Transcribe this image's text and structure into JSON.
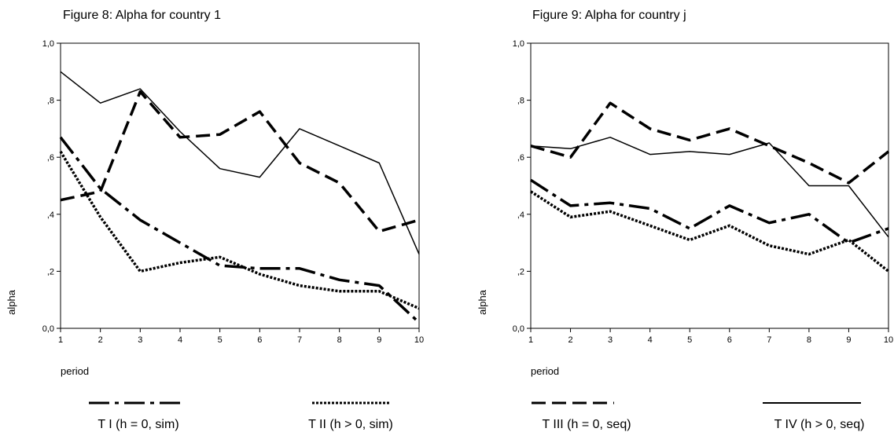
{
  "legend": {
    "items": [
      {
        "label": "T I (h = 0, sim)",
        "style": "dashdot"
      },
      {
        "label": "T II (h > 0, sim)",
        "style": "dotted"
      },
      {
        "label": "T III (h = 0, seq)",
        "style": "dashed"
      },
      {
        "label": "T IV (h > 0, seq)",
        "style": "solid"
      }
    ]
  },
  "chart_data": [
    {
      "type": "line",
      "title": "Figure 8: Alpha for country 1",
      "xlabel": "period",
      "ylabel": "alpha",
      "x": [
        1,
        2,
        3,
        4,
        5,
        6,
        7,
        8,
        9,
        10
      ],
      "xticks": [
        "1",
        "2",
        "3",
        "4",
        "5",
        "6",
        "7",
        "8",
        "9",
        "10"
      ],
      "yticks": [
        {
          "value": 0.0,
          "label": "0,0"
        },
        {
          "value": 0.2,
          "label": ",2"
        },
        {
          "value": 0.4,
          "label": ",4"
        },
        {
          "value": 0.6,
          "label": ",6"
        },
        {
          "value": 0.8,
          "label": ",8"
        },
        {
          "value": 1.0,
          "label": "1,0"
        }
      ],
      "xlim": [
        1,
        10
      ],
      "ylim": [
        0,
        1
      ],
      "grid": false,
      "series": [
        {
          "name": "T I (h = 0, sim)",
          "style": "dashdot",
          "values": [
            0.67,
            0.49,
            0.38,
            0.3,
            0.22,
            0.21,
            0.21,
            0.17,
            0.15,
            0.02
          ]
        },
        {
          "name": "T II (h > 0, sim)",
          "style": "dotted",
          "values": [
            0.62,
            0.39,
            0.2,
            0.23,
            0.25,
            0.19,
            0.15,
            0.13,
            0.13,
            0.07
          ]
        },
        {
          "name": "T III (h = 0, seq)",
          "style": "dashed",
          "values": [
            0.45,
            0.48,
            0.83,
            0.67,
            0.68,
            0.76,
            0.58,
            0.51,
            0.34,
            0.38
          ]
        },
        {
          "name": "T IV (h > 0, seq)",
          "style": "solid",
          "values": [
            0.9,
            0.79,
            0.84,
            0.69,
            0.56,
            0.53,
            0.7,
            0.64,
            0.58,
            0.26
          ]
        }
      ]
    },
    {
      "type": "line",
      "title": "Figure 9: Alpha for country j",
      "xlabel": "period",
      "ylabel": "alpha",
      "x": [
        1,
        2,
        3,
        4,
        5,
        6,
        7,
        8,
        9,
        10
      ],
      "xticks": [
        "1",
        "2",
        "3",
        "4",
        "5",
        "6",
        "7",
        "8",
        "9",
        "10"
      ],
      "yticks": [
        {
          "value": 0.0,
          "label": "0,0"
        },
        {
          "value": 0.2,
          "label": ",2"
        },
        {
          "value": 0.4,
          "label": ",4"
        },
        {
          "value": 0.6,
          "label": ",6"
        },
        {
          "value": 0.8,
          "label": ",8"
        },
        {
          "value": 1.0,
          "label": "1,0"
        }
      ],
      "xlim": [
        1,
        10
      ],
      "ylim": [
        0,
        1
      ],
      "grid": false,
      "series": [
        {
          "name": "T I (h = 0, sim)",
          "style": "dashdot",
          "values": [
            0.52,
            0.43,
            0.44,
            0.42,
            0.35,
            0.43,
            0.37,
            0.4,
            0.3,
            0.35
          ]
        },
        {
          "name": "T II (h > 0, sim)",
          "style": "dotted",
          "values": [
            0.48,
            0.39,
            0.41,
            0.36,
            0.31,
            0.36,
            0.29,
            0.26,
            0.31,
            0.2
          ]
        },
        {
          "name": "T III (h = 0, seq)",
          "style": "dashed",
          "values": [
            0.64,
            0.6,
            0.79,
            0.7,
            0.66,
            0.7,
            0.64,
            0.58,
            0.51,
            0.62
          ]
        },
        {
          "name": "T IV (h > 0, seq)",
          "style": "solid",
          "values": [
            0.64,
            0.63,
            0.67,
            0.61,
            0.62,
            0.61,
            0.65,
            0.5,
            0.5,
            0.32
          ]
        }
      ]
    }
  ]
}
